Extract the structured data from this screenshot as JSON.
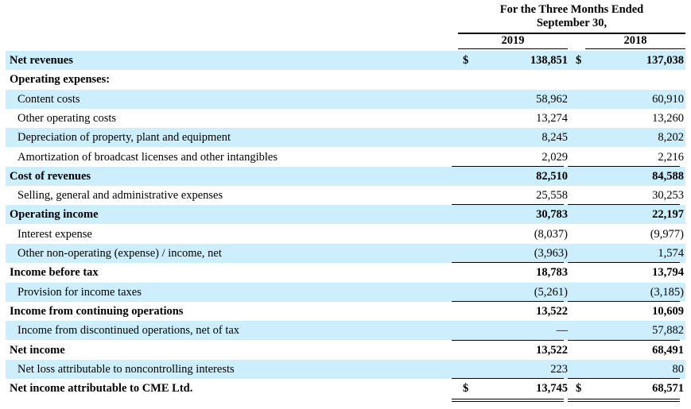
{
  "header": {
    "title_line1": "For the Three Months Ended",
    "title_line2": "September 30,",
    "year_1": "2019",
    "year_2": "2018"
  },
  "currency_symbol": "$",
  "rows": [
    {
      "label": "Net revenues",
      "v2019": "138,851",
      "v2018": "137,038",
      "bold": true,
      "shade": true,
      "dollar": true
    },
    {
      "label": "Operating expenses:",
      "v2019": "",
      "v2018": "",
      "bold": true,
      "shade": false
    },
    {
      "label": "Content costs",
      "v2019": "58,962",
      "v2018": "60,910",
      "bold": false,
      "shade": true
    },
    {
      "label": "Other operating costs",
      "v2019": "13,274",
      "v2018": "13,260",
      "bold": false,
      "shade": false
    },
    {
      "label": "Depreciation of property, plant and equipment",
      "v2019": "8,245",
      "v2018": "8,202",
      "bold": false,
      "shade": true
    },
    {
      "label": "Amortization of broadcast licenses and other intangibles",
      "v2019": "2,029",
      "v2018": "2,216",
      "bold": false,
      "shade": false
    },
    {
      "label": "Cost of revenues",
      "v2019": "82,510",
      "v2018": "84,588",
      "bold": true,
      "shade": true
    },
    {
      "label": "Selling, general and administrative expenses",
      "v2019": "25,558",
      "v2018": "30,253",
      "bold": false,
      "shade": false
    },
    {
      "label": "Operating income",
      "v2019": "30,783",
      "v2018": "22,197",
      "bold": true,
      "shade": true
    },
    {
      "label": "Interest expense",
      "v2019": "(8,037)",
      "v2018": "(9,977)",
      "bold": false,
      "shade": false
    },
    {
      "label": "Other non-operating (expense) / income, net",
      "v2019": "(3,963)",
      "v2018": "1,574",
      "bold": false,
      "shade": true
    },
    {
      "label": "Income before tax",
      "v2019": "18,783",
      "v2018": "13,794",
      "bold": true,
      "shade": false
    },
    {
      "label": "Provision for income taxes",
      "v2019": "(5,261)",
      "v2018": "(3,185)",
      "bold": false,
      "shade": true
    },
    {
      "label": "Income from continuing operations",
      "v2019": "13,522",
      "v2018": "10,609",
      "bold": true,
      "shade": false
    },
    {
      "label": "Income from discontinued operations, net of tax",
      "v2019": "—",
      "v2018": "57,882",
      "bold": false,
      "shade": true
    },
    {
      "label": "Net income",
      "v2019": "13,522",
      "v2018": "68,491",
      "bold": true,
      "shade": false
    },
    {
      "label": "Net loss attributable to noncontrolling interests",
      "v2019": "223",
      "v2018": "80",
      "bold": false,
      "shade": true
    },
    {
      "label": "Net income attributable to CME Ltd.",
      "v2019": "13,745",
      "v2018": "68,571",
      "bold": true,
      "shade": false,
      "dollar": true
    }
  ]
}
